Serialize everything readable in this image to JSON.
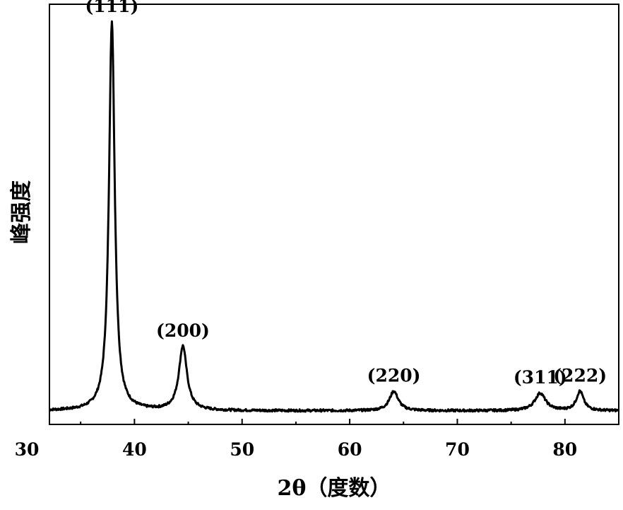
{
  "chart_data": {
    "type": "line",
    "title": "",
    "xlabel": "2θ（度数）",
    "ylabel": "峰强度",
    "xlim": [
      30,
      85
    ],
    "ylim": [
      0,
      1.08
    ],
    "x_ticks": [
      30,
      40,
      50,
      60,
      70,
      80
    ],
    "x_tick_labels": [
      "30",
      "40",
      "50",
      "60",
      "70",
      "80"
    ],
    "y_ticks": [],
    "grid": false,
    "legend": "none",
    "series": [
      {
        "line_color": "#000000",
        "baseline": 0.035,
        "peaks": [
          {
            "x": 37.9,
            "height": 1.0,
            "width": 0.32
          },
          {
            "x": 44.5,
            "height": 0.165,
            "width": 0.45
          },
          {
            "x": 64.1,
            "height": 0.05,
            "width": 0.5
          },
          {
            "x": 77.7,
            "height": 0.045,
            "width": 0.6
          },
          {
            "x": 81.4,
            "height": 0.05,
            "width": 0.4
          }
        ]
      }
    ],
    "annotations": [
      {
        "text": "(111)",
        "x": 37.9
      },
      {
        "text": "(200)",
        "x": 44.5
      },
      {
        "text": "(220)",
        "x": 64.1
      },
      {
        "text": "(311)",
        "x": 77.7
      },
      {
        "text": "(222)",
        "x": 81.4
      }
    ]
  }
}
